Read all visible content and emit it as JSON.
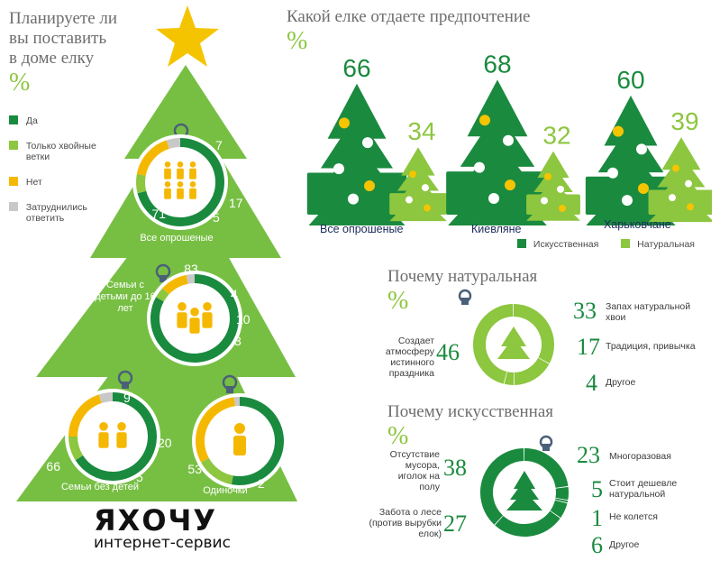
{
  "left": {
    "title_lines": [
      "Планируете ли",
      "вы поставить",
      "в доме елку"
    ],
    "unit": "%",
    "legend": [
      {
        "label": "Да",
        "color": "#1a8a3f"
      },
      {
        "label": "Только хвойные ветки",
        "color": "#8dc63f"
      },
      {
        "label": "Нет",
        "color": "#f5b800"
      },
      {
        "label": "Затруднились ответить",
        "color": "#c8c8c8"
      }
    ]
  },
  "right_top": {
    "title": "Какой елке отдаете предпочтение",
    "unit": "%",
    "legend": [
      {
        "label": "Искусственная",
        "color": "#1a8a3f"
      },
      {
        "label": "Натуральная",
        "color": "#8dc63f"
      }
    ]
  },
  "why_natural": {
    "title": "Почему натуральная",
    "unit": "%"
  },
  "why_artificial": {
    "title": "Почему искусственная",
    "unit": "%"
  },
  "logo": {
    "text": "ЯХОЧУ",
    "sub": "интернет-сервис"
  },
  "chart_data": [
    {
      "type": "pie",
      "title": "Планируете ли вы поставить в доме елку",
      "unit": "%",
      "categories": [
        "Да",
        "Только хвойные ветки",
        "Нет",
        "Затруднились ответить"
      ],
      "groups": [
        {
          "name": "Все опрошеные",
          "values": [
            71,
            7,
            17,
            5
          ]
        },
        {
          "name": "Семьи с детьми до 16 лет",
          "values": [
            83,
            4,
            10,
            3
          ]
        },
        {
          "name": "Семьи без детей",
          "values": [
            66,
            9,
            20,
            5
          ]
        },
        {
          "name": "Одиночки",
          "values": [
            53,
            14,
            31,
            2
          ]
        }
      ]
    },
    {
      "type": "bar",
      "title": "Какой елке отдаете предпочтение",
      "unit": "%",
      "categories": [
        "Все опрошеные",
        "Киевляне",
        "Харьковчане"
      ],
      "series": [
        {
          "name": "Искусственная",
          "values": [
            66,
            68,
            60
          ]
        },
        {
          "name": "Натуральная",
          "values": [
            34,
            32,
            39
          ]
        }
      ]
    },
    {
      "type": "pie",
      "title": "Почему натуральная",
      "unit": "%",
      "items": [
        {
          "label": "Запах натуральной хвои",
          "value": 33
        },
        {
          "label": "Традиция, привычка",
          "value": 17
        },
        {
          "label": "Другое",
          "value": 4
        },
        {
          "label": "Создает атмосферу истинного праздника",
          "value": 46
        }
      ]
    },
    {
      "type": "pie",
      "title": "Почему искусственная",
      "unit": "%",
      "items": [
        {
          "label": "Многоразовая",
          "value": 23
        },
        {
          "label": "Стоит дешевле натуральной",
          "value": 5
        },
        {
          "label": "Не колется",
          "value": 1
        },
        {
          "label": "Другое",
          "value": 6
        },
        {
          "label": "Забота о лесе (против вырубки елок)",
          "value": 27
        },
        {
          "label": "Отсутствие мусора, иголок на полу",
          "value": 38
        }
      ]
    }
  ]
}
